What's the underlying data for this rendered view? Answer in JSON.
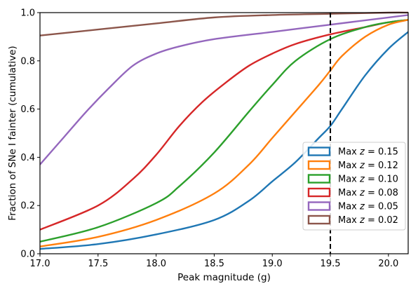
{
  "chart_data": {
    "type": "line",
    "xlabel": "Peak magnitude (g)",
    "ylabel": "Fraction of SNe I fainter (cumulative)",
    "xlim": [
      17.0,
      20.17
    ],
    "ylim": [
      0.0,
      1.0
    ],
    "xticks": [
      "17.0",
      "17.5",
      "18.0",
      "18.5",
      "19.0",
      "19.5",
      "20.0"
    ],
    "yticks": [
      "0.0",
      "0.2",
      "0.4",
      "0.6",
      "0.8",
      "1.0"
    ],
    "grid": false,
    "legend_position": "lower-right",
    "vline": {
      "x": 19.5,
      "style": "dashed",
      "color": "#000000"
    },
    "series": [
      {
        "name": "Max z = 0.15",
        "color": "#1f77b4",
        "x": [
          17.0,
          17.5,
          18.0,
          18.5,
          18.8,
          19.0,
          19.2,
          19.4,
          19.5,
          19.6,
          19.8,
          20.0,
          20.17
        ],
        "y": [
          0.02,
          0.04,
          0.08,
          0.14,
          0.22,
          0.3,
          0.38,
          0.48,
          0.53,
          0.6,
          0.74,
          0.85,
          0.92
        ]
      },
      {
        "name": "Max z = 0.12",
        "color": "#ff7f0e",
        "x": [
          17.0,
          17.5,
          18.0,
          18.5,
          18.8,
          19.0,
          19.2,
          19.4,
          19.5,
          19.6,
          19.8,
          20.0,
          20.17
        ],
        "y": [
          0.03,
          0.07,
          0.14,
          0.25,
          0.37,
          0.48,
          0.59,
          0.7,
          0.76,
          0.82,
          0.9,
          0.95,
          0.97
        ]
      },
      {
        "name": "Max z = 0.10",
        "color": "#2ca02c",
        "x": [
          17.0,
          17.5,
          18.0,
          18.2,
          18.5,
          18.8,
          19.0,
          19.2,
          19.5,
          19.8,
          20.0,
          20.17
        ],
        "y": [
          0.05,
          0.11,
          0.21,
          0.28,
          0.42,
          0.59,
          0.7,
          0.8,
          0.89,
          0.94,
          0.96,
          0.97
        ]
      },
      {
        "name": "Max z = 0.08",
        "color": "#d62728",
        "x": [
          17.0,
          17.5,
          17.8,
          18.0,
          18.2,
          18.4,
          18.6,
          18.8,
          19.0,
          19.2,
          19.5,
          19.8,
          20.0,
          20.17
        ],
        "y": [
          0.1,
          0.2,
          0.31,
          0.41,
          0.53,
          0.63,
          0.71,
          0.78,
          0.83,
          0.87,
          0.91,
          0.94,
          0.96,
          0.97
        ]
      },
      {
        "name": "Max z = 0.05",
        "color": "#9467bd",
        "x": [
          17.0,
          17.2,
          17.4,
          17.6,
          17.8,
          18.0,
          18.2,
          18.5,
          19.0,
          19.5,
          20.0,
          20.17
        ],
        "y": [
          0.37,
          0.48,
          0.59,
          0.69,
          0.78,
          0.83,
          0.86,
          0.89,
          0.92,
          0.95,
          0.98,
          0.99
        ]
      },
      {
        "name": "Max z = 0.02",
        "color": "#8c564b",
        "x": [
          17.0,
          17.5,
          18.0,
          18.5,
          19.0,
          19.5,
          20.0,
          20.17
        ],
        "y": [
          0.905,
          0.93,
          0.955,
          0.98,
          0.99,
          0.995,
          1.0,
          1.0
        ]
      }
    ]
  }
}
